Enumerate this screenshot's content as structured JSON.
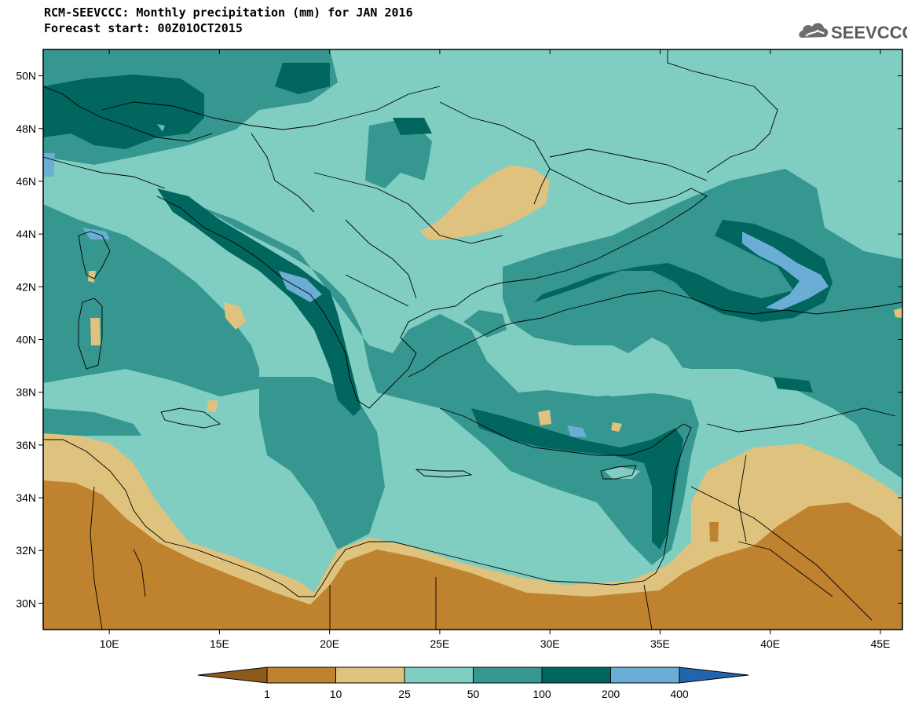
{
  "header": {
    "title": "RCM-SEEVCCC: Monthly precipitation (mm) for JAN 2016",
    "subtitle": "Forecast start: 00Z01OCT2015",
    "logo_text": "SEEVCCC",
    "logo_icon": "cloud-icon"
  },
  "map": {
    "lon_range": [
      7,
      46
    ],
    "lat_range": [
      29,
      51
    ],
    "lat_ticks": [
      "50N",
      "48N",
      "46N",
      "44N",
      "42N",
      "40N",
      "38N",
      "36N",
      "34N",
      "32N",
      "30N"
    ],
    "lon_ticks": [
      "10E",
      "15E",
      "20E",
      "25E",
      "30E",
      "35E",
      "40E",
      "45E"
    ],
    "lat_tick_values": [
      50,
      48,
      46,
      44,
      42,
      40,
      38,
      36,
      34,
      32,
      30
    ],
    "lon_tick_values": [
      10,
      15,
      20,
      25,
      30,
      35,
      40,
      45
    ]
  },
  "colorbar": {
    "labels": [
      "1",
      "10",
      "25",
      "50",
      "100",
      "200",
      "400"
    ],
    "colors": [
      "#8b5a1c",
      "#bf822f",
      "#dfc27d",
      "#80cdc1",
      "#35978f",
      "#01665e",
      "#6aaed6",
      "#2166ac"
    ]
  }
}
